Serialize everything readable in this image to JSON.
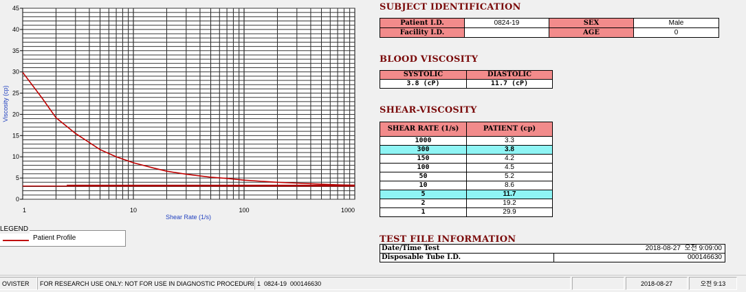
{
  "chart_data": {
    "type": "line",
    "xscale": "log",
    "xlim": [
      1,
      1000
    ],
    "ylim": [
      0,
      45
    ],
    "xlabel": "Shear Rate (1/s)",
    "ylabel": "Viscosity (cp)",
    "xticks": [
      "1",
      "10",
      "100",
      "1000"
    ],
    "yticks": [
      "0",
      "5",
      "10",
      "15",
      "20",
      "25",
      "30",
      "35",
      "40",
      "45"
    ],
    "grid": true,
    "series": [
      {
        "name": "Patient Profile",
        "color": "#c00000",
        "x": [
          1,
          1.5,
          2,
          3,
          5,
          7,
          10,
          15,
          20,
          30,
          50,
          70,
          100,
          150,
          200,
          300,
          500,
          700,
          1000
        ],
        "y": [
          29.9,
          23.8,
          19.2,
          15.5,
          11.7,
          10.0,
          8.6,
          7.4,
          6.6,
          5.9,
          5.2,
          4.9,
          4.5,
          4.2,
          4.0,
          3.8,
          3.55,
          3.4,
          3.3
        ]
      },
      {
        "color": "#c00000",
        "x": [
          1,
          1000
        ],
        "y": [
          3.1,
          3.1
        ]
      },
      {
        "color": "#a00000",
        "x": [
          2.5,
          1000
        ],
        "y": [
          3.3,
          3.3
        ]
      }
    ]
  },
  "legend": {
    "title": "LEGEND",
    "items": [
      {
        "label": "Patient Profile",
        "color": "#c00000"
      }
    ]
  },
  "subject": {
    "title": "SUBJECT IDENTIFICATION",
    "patient_id_label": "Patient I.D.",
    "patient_id": "0824-19",
    "sex_label": "SEX",
    "sex": "Male",
    "facility_id_label": "Facility I.D.",
    "facility_id": "",
    "age_label": "AGE",
    "age": "0"
  },
  "blood_viscosity": {
    "title": "BLOOD VISCOSITY",
    "systolic_label": "SYSTOLIC",
    "diastolic_label": "DIASTOLIC",
    "systolic": "3.8 (cP)",
    "diastolic": "11.7 (cP)"
  },
  "shear_viscosity": {
    "title": "SHEAR-VISCOSITY",
    "col_rate": "SHEAR RATE (1/s)",
    "col_patient": "PATIENT (cp)",
    "rows": [
      {
        "rate": "1000",
        "value": "3.3",
        "highlight": false
      },
      {
        "rate": "300",
        "value": "3.8",
        "highlight": true
      },
      {
        "rate": "150",
        "value": "4.2",
        "highlight": false
      },
      {
        "rate": "100",
        "value": "4.5",
        "highlight": false
      },
      {
        "rate": "50",
        "value": "5.2",
        "highlight": false
      },
      {
        "rate": "10",
        "value": "8.6",
        "highlight": false
      },
      {
        "rate": "5",
        "value": "11.7",
        "highlight": true
      },
      {
        "rate": "2",
        "value": "19.2",
        "highlight": false
      },
      {
        "rate": "1",
        "value": "29.9",
        "highlight": false
      }
    ]
  },
  "test_file": {
    "title": "TEST FILE INFORMATION",
    "datetime_label": "Date/Time Test",
    "datetime": "2018-08-27  오전 9:09:00",
    "tube_label": "Disposable Tube I.D.",
    "tube": "000146630"
  },
  "status_bar": {
    "app": "OVISTER",
    "notice": "FOR RESEARCH USE ONLY: NOT FOR USE IN DIAGNOSTIC PROCEDURES",
    "record": "1  0824-19  000146630",
    "empty": "",
    "date": "2018-08-27",
    "time": "오전 9:13"
  }
}
